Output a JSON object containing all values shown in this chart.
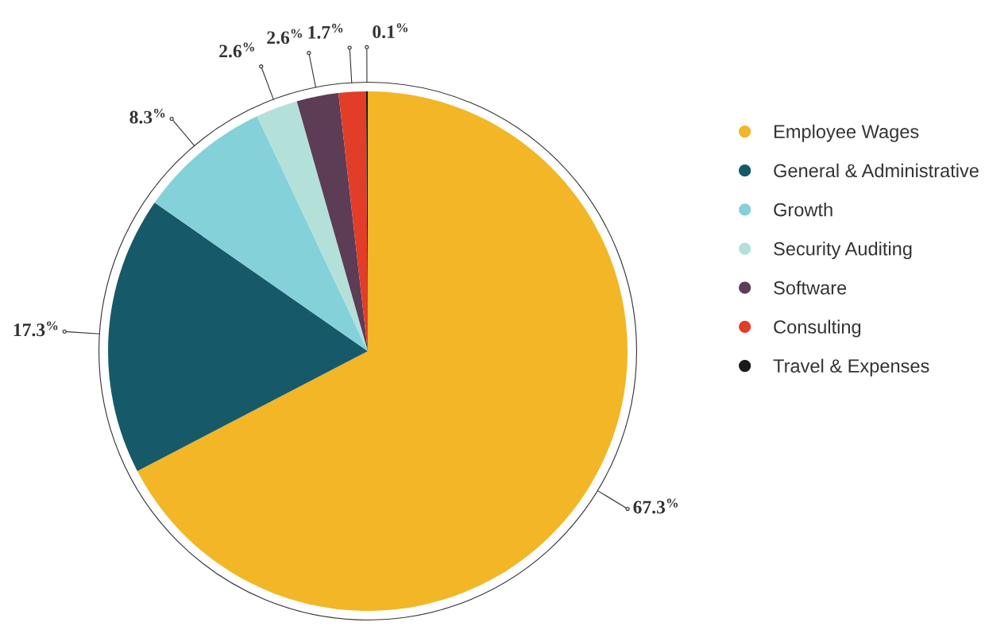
{
  "chart_data": {
    "type": "pie",
    "categories": [
      "Employee Wages",
      "General & Administrative",
      "Growth",
      "Security Auditing",
      "Software",
      "Consulting",
      "Travel & Expenses"
    ],
    "values": [
      67.3,
      17.3,
      8.3,
      2.6,
      2.6,
      1.7,
      0.1
    ],
    "colors": [
      "#f2b626",
      "#165a6a",
      "#84d1da",
      "#b4e0da",
      "#5d3c55",
      "#e23d28",
      "#1a1a1a"
    ],
    "value_labels": [
      "67.3$^{%}$",
      "17.3$^{%}$",
      "8.3$^{%}$",
      "2.6$^{%}$",
      "2.6$^{%}$",
      "1.7$^{%}$",
      "0.1$^{%}$"
    ],
    "legend": "right"
  }
}
